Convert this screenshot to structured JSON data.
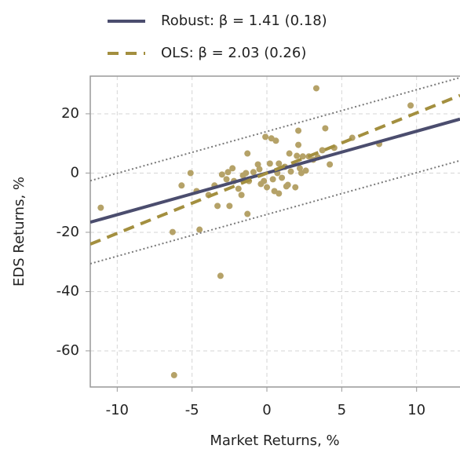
{
  "chart_data": {
    "type": "scatter",
    "x_label": "Market Returns, %",
    "y_label": "EDS Returns, %",
    "xlim": [
      -11.8,
      12.9
    ],
    "ylim": [
      -72.2,
      32.7
    ],
    "xticks": [
      -10,
      -5,
      0,
      5,
      10
    ],
    "yticks": [
      20,
      0,
      -20,
      -40,
      -60
    ],
    "grid": true,
    "legend": "top-left",
    "series": [
      {
        "style": "points",
        "color": "#b5a268",
        "x": [
          -11.1,
          -6.3,
          -6.2,
          -5.7,
          -5.1,
          -4.7,
          -4.5,
          -3.9,
          -3.5,
          -3.3,
          -3.1,
          -3.0,
          -2.7,
          -2.6,
          -2.5,
          -2.3,
          -2.2,
          -1.9,
          -1.7,
          -1.6,
          -1.4,
          -1.3,
          -1.3,
          -1.2,
          -0.9,
          -0.6,
          -0.5,
          -0.4,
          -0.2,
          -0.1,
          0,
          0.2,
          0.3,
          0.4,
          0.5,
          0.6,
          0.7,
          0.8,
          0.8,
          1.0,
          1.2,
          1.3,
          1.4,
          1.5,
          1.6,
          1.9,
          2.0,
          2.1,
          2.1,
          2.2,
          2.3,
          2.4,
          2.6,
          2.8,
          3.1,
          3.3,
          3.4,
          3.7,
          3.9,
          4.2,
          4.5,
          5.7,
          7.5,
          9.6
        ],
        "values": [
          -11.7,
          -19.9,
          -68.2,
          -4.2,
          0,
          -6.1,
          -19.1,
          -7.4,
          -4.2,
          -11.1,
          -34.7,
          -0.5,
          -2.1,
          0.3,
          -11.1,
          1.6,
          -2.7,
          -5.3,
          -7.4,
          -0.8,
          0,
          -13.8,
          6.6,
          -2.7,
          0.3,
          2.9,
          1.3,
          -3.7,
          -2.7,
          12.2,
          -4.8,
          3.2,
          11.7,
          -2.1,
          -6.1,
          10.9,
          0,
          3.2,
          -6.9,
          -1.6,
          2.1,
          -4.5,
          -4.0,
          6.6,
          0.5,
          -4.8,
          5.8,
          14.3,
          9.5,
          1.6,
          0,
          5.6,
          0.8,
          5.6,
          4.5,
          28.6,
          5.3,
          7.7,
          15.1,
          2.9,
          8.5,
          11.9,
          9.8,
          22.8
        ]
      },
      {
        "style": "dotted",
        "color": "#7a7a7a",
        "x": [
          -11.8,
          12.9
        ],
        "values": [
          -2.6,
          32.2
        ]
      },
      {
        "style": "dotted",
        "color": "#7a7a7a",
        "x": [
          -11.8,
          12.9
        ],
        "values": [
          -30.6,
          4.2
        ]
      },
      {
        "name": "Robust: β = 1.41 (0.18)",
        "style": "solid",
        "color": "#4b4d6e",
        "x": [
          -11.8,
          12.9
        ],
        "values": [
          -16.6,
          18.2
        ]
      },
      {
        "name": "OLS: β = 2.03 (0.26)",
        "style": "dashed",
        "color": "#a38f3f",
        "x": [
          -11.8,
          12.9
        ],
        "values": [
          -24.0,
          26.2
        ]
      }
    ]
  }
}
